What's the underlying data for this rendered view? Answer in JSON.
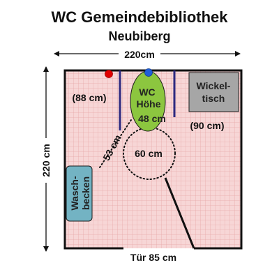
{
  "title": "WC Gemeindebibliothek",
  "subtitle": "Neubiberg",
  "dimensions": {
    "width_label": "220cm",
    "height_label": "220 cm",
    "door_label": "Tür 85 cm"
  },
  "fixtures": {
    "wc": {
      "line1": "WC",
      "line2": "Höhe",
      "line3": "48 cm"
    },
    "changing_table": {
      "line1": "Wickel-",
      "line2": "tisch"
    },
    "sink": {
      "line1": "Wasch-",
      "line2": "becken"
    }
  },
  "measurements": {
    "left_clearance": "(88 cm)",
    "right_clearance": "(90 cm)",
    "diagonal": "53 cm",
    "turning_circle": "60 cm"
  },
  "colors": {
    "floor": "#f7d6d6",
    "floor_grid": "#e8a9a9",
    "wall": "#111111",
    "wc_fill": "#8cc63f",
    "changing_table_fill": "#a6a6a6",
    "sink_fill": "#73b3c3",
    "grab_bar": "#2e2a80",
    "red_marker": "#e00000",
    "blue_marker": "#1f5fd8"
  }
}
